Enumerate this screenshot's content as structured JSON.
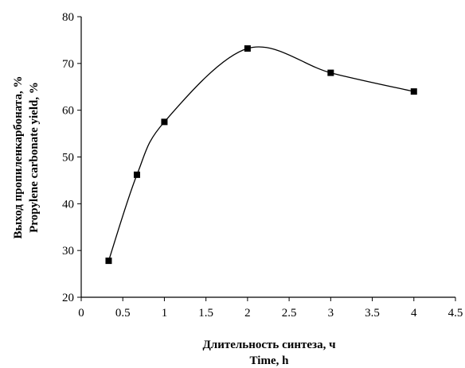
{
  "chart_data": {
    "type": "line",
    "x": [
      0.33,
      0.67,
      1,
      2,
      3,
      4
    ],
    "series": [
      {
        "values": [
          27.8,
          46.2,
          57.5,
          73.2,
          68.0,
          64.0
        ]
      }
    ],
    "xlabel_line1": "Длительность синтеза, ч",
    "xlabel_line2": "Time, h",
    "ylabel_line1": "Выход пропиленкарбоната, %",
    "ylabel_line2": "Propylene carbonate yield, %",
    "xlim": [
      0,
      4.5
    ],
    "ylim": [
      20,
      80
    ],
    "xticks": [
      0,
      0.5,
      1,
      1.5,
      2,
      2.5,
      3,
      3.5,
      4,
      4.5
    ],
    "yticks": [
      20,
      30,
      40,
      50,
      60,
      70,
      80
    ],
    "xtick_labels": [
      "0",
      "0.5",
      "1",
      "1.5",
      "2",
      "2.5",
      "3",
      "3.5",
      "4",
      "4.5"
    ],
    "ytick_labels": [
      "20",
      "30",
      "40",
      "50",
      "60",
      "70",
      "80"
    ],
    "grid": false,
    "line_style": "smooth",
    "marker": "square",
    "color": "#000000"
  }
}
